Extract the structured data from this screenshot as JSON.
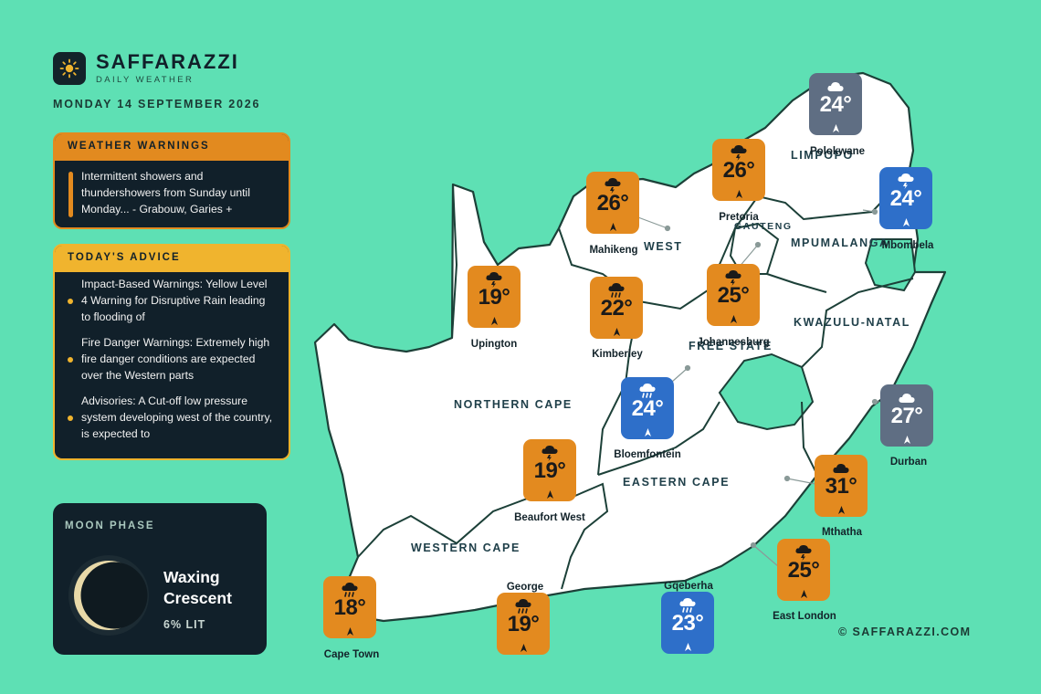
{
  "brand": {
    "name": "SAFFARAZZI",
    "subtitle": "DAILY WEATHER",
    "icon": "sun-icon"
  },
  "date": "MONDAY 14 SEPTEMBER 2026",
  "warnings": {
    "title": "WEATHER WARNINGS",
    "text": "Intermittent showers and thundershowers from Sunday until Monday... - Grabouw, Garies +"
  },
  "advice": {
    "title": "TODAY'S ADVICE",
    "items": [
      "Impact-Based Warnings: Yellow Level 4 Warning for Disruptive Rain leading to flooding of",
      "Fire Danger Warnings: Extremely high fire danger conditions are expected over the Western parts",
      "Advisories: A Cut-off low pressure system developing west of the country, is expected to"
    ]
  },
  "moon": {
    "title": "MOON PHASE",
    "phase": "Waxing Crescent",
    "lit": "6% LIT",
    "lit_fraction": 0.06
  },
  "provinces": {
    "limpopo": "LIMPOPO",
    "north_west": "WEST",
    "gauteng": "GAUTENG",
    "mpumalanga": "MPUMALANGA",
    "kzn": "KWAZULU-NATAL",
    "free_state": "FREE STATE",
    "northern_cape": "NORTHERN CAPE",
    "eastern_cape": "EASTERN CAPE",
    "western_cape": "WESTERN CAPE"
  },
  "cities": [
    {
      "name": "Polokwane",
      "temp": "24°",
      "condition": "cloud-icon",
      "color": "gray"
    },
    {
      "name": "Pretoria",
      "temp": "26°",
      "condition": "thunderstorm-icon",
      "color": "orange"
    },
    {
      "name": "Mahikeng",
      "temp": "26°",
      "condition": "thunderstorm-icon",
      "color": "orange"
    },
    {
      "name": "Mbombela",
      "temp": "24°",
      "condition": "thunderstorm-icon",
      "color": "blue"
    },
    {
      "name": "Upington",
      "temp": "19°",
      "condition": "thunderstorm-icon",
      "color": "orange"
    },
    {
      "name": "Kimberley",
      "temp": "22°",
      "condition": "rain-icon",
      "color": "orange"
    },
    {
      "name": "Johannesburg",
      "temp": "25°",
      "condition": "thunderstorm-icon",
      "color": "orange"
    },
    {
      "name": "Bloemfontein",
      "temp": "24°",
      "condition": "rain-icon",
      "color": "blue"
    },
    {
      "name": "Durban",
      "temp": "27°",
      "condition": "cloud-icon",
      "color": "gray"
    },
    {
      "name": "Beaufort West",
      "temp": "19°",
      "condition": "thunderstorm-icon",
      "color": "orange"
    },
    {
      "name": "Mthatha",
      "temp": "31°",
      "condition": "cloud-icon",
      "color": "orange"
    },
    {
      "name": "East London",
      "temp": "25°",
      "condition": "thunderstorm-icon",
      "color": "orange"
    },
    {
      "name": "Cape Town",
      "temp": "18°",
      "condition": "rain-icon",
      "color": "orange"
    },
    {
      "name": "George",
      "temp": "19°",
      "condition": "rain-icon",
      "color": "orange"
    },
    {
      "name": "Gqeberha",
      "temp": "23°",
      "condition": "rain-icon",
      "color": "blue"
    }
  ],
  "colors": {
    "background": "#5ee0b4",
    "panel": "#11202a",
    "orange": "#e38a1f",
    "blue": "#2e6fc9",
    "gray": "#5f6e83",
    "advice": "#f0b42e"
  },
  "copyright": "© SAFFARAZZI.COM"
}
